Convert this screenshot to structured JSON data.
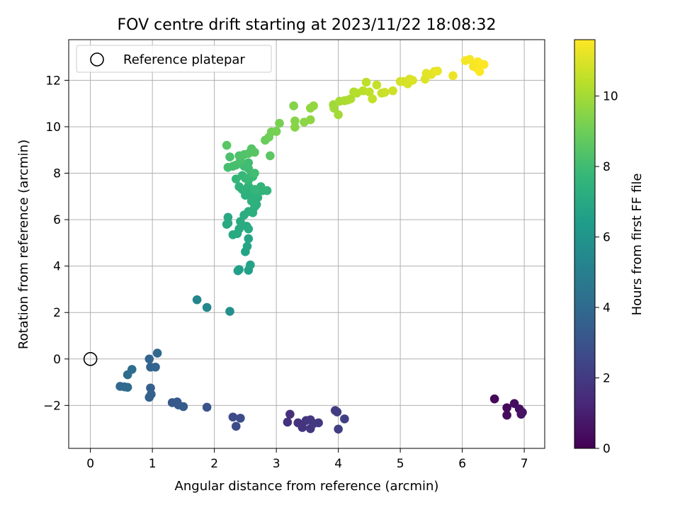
{
  "chart_data": {
    "type": "scatter",
    "title": "FOV centre drift starting at 2023/11/22 18:08:32",
    "xlabel": "Angular distance from reference (arcmin)",
    "ylabel": "Rotation from reference (arcmin)",
    "xlim": [
      -0.35,
      7.33
    ],
    "ylim": [
      -3.85,
      13.75
    ],
    "x_ticks": [
      0,
      1,
      2,
      3,
      4,
      5,
      6,
      7
    ],
    "y_ticks": [
      -2,
      0,
      2,
      4,
      6,
      8,
      10,
      12
    ],
    "grid": true,
    "legend": {
      "location": "upper left",
      "entries": [
        "Reference platepar"
      ]
    },
    "reference_point": {
      "x": 0,
      "y": 0
    },
    "colorbar": {
      "label": "Hours from first FF file",
      "range": [
        0,
        11.6
      ],
      "ticks": [
        0,
        2,
        4,
        6,
        8,
        10
      ],
      "colormap": "viridis"
    },
    "colormap_stops": [
      "#440154",
      "#482878",
      "#3e4989",
      "#31688e",
      "#26828e",
      "#1f9e89",
      "#35b779",
      "#6ece58",
      "#b5de2b",
      "#fde725"
    ],
    "points": [
      [
        6.52,
        -1.72,
        0.2
      ],
      [
        6.72,
        -2.1,
        0.3
      ],
      [
        6.84,
        -1.92,
        0.4
      ],
      [
        6.92,
        -2.15,
        0.45
      ],
      [
        6.97,
        -2.3,
        0.5
      ],
      [
        6.95,
        -2.38,
        0.55
      ],
      [
        6.72,
        -2.42,
        0.35
      ],
      [
        3.22,
        -2.38,
        1.6
      ],
      [
        3.18,
        -2.72,
        1.65
      ],
      [
        3.35,
        -2.75,
        1.7
      ],
      [
        3.42,
        -2.95,
        1.75
      ],
      [
        3.48,
        -2.65,
        1.8
      ],
      [
        3.55,
        -2.62,
        1.85
      ],
      [
        3.55,
        -3.0,
        1.9
      ],
      [
        3.6,
        -2.78,
        1.95
      ],
      [
        3.68,
        -2.75,
        2.0
      ],
      [
        3.95,
        -2.22,
        2.05
      ],
      [
        3.98,
        -2.28,
        2.1
      ],
      [
        4.0,
        -3.02,
        2.15
      ],
      [
        4.1,
        -2.58,
        2.2
      ],
      [
        2.3,
        -2.5,
        2.6
      ],
      [
        2.42,
        -2.55,
        2.65
      ],
      [
        2.35,
        -2.9,
        2.7
      ],
      [
        1.88,
        -2.08,
        3.0
      ],
      [
        1.32,
        -1.88,
        3.2
      ],
      [
        1.4,
        -1.85,
        3.25
      ],
      [
        1.42,
        -1.98,
        3.3
      ],
      [
        1.5,
        -2.05,
        3.35
      ],
      [
        0.97,
        -1.25,
        3.5
      ],
      [
        0.95,
        -1.65,
        3.55
      ],
      [
        0.98,
        -1.52,
        3.6
      ],
      [
        0.97,
        -0.35,
        3.7
      ],
      [
        0.95,
        0.0,
        3.75
      ],
      [
        1.05,
        -0.35,
        3.8
      ],
      [
        1.08,
        0.25,
        3.85
      ],
      [
        0.48,
        -1.18,
        3.9
      ],
      [
        0.55,
        -1.2,
        3.95
      ],
      [
        0.6,
        -1.22,
        4.0
      ],
      [
        0.6,
        -0.68,
        4.05
      ],
      [
        0.67,
        -0.45,
        4.1
      ],
      [
        1.72,
        2.55,
        5.3
      ],
      [
        1.88,
        2.22,
        5.4
      ],
      [
        2.25,
        2.05,
        5.8
      ],
      [
        2.4,
        3.85,
        6.5
      ],
      [
        2.38,
        3.8,
        6.55
      ],
      [
        2.55,
        3.82,
        6.6
      ],
      [
        2.58,
        4.05,
        6.65
      ],
      [
        2.5,
        4.62,
        6.7
      ],
      [
        2.53,
        4.85,
        6.75
      ],
      [
        2.55,
        5.18,
        6.8
      ],
      [
        2.2,
        5.8,
        6.9
      ],
      [
        2.22,
        6.1,
        6.95
      ],
      [
        2.22,
        5.85,
        7.0
      ],
      [
        2.3,
        5.35,
        7.0
      ],
      [
        2.4,
        5.6,
        7.05
      ],
      [
        2.37,
        5.4,
        7.05
      ],
      [
        2.52,
        5.72,
        7.1
      ],
      [
        2.55,
        5.6,
        7.1
      ],
      [
        2.42,
        5.92,
        7.15
      ],
      [
        2.48,
        6.2,
        7.2
      ],
      [
        2.55,
        6.35,
        7.2
      ],
      [
        2.62,
        6.3,
        7.25
      ],
      [
        2.65,
        6.55,
        7.25
      ],
      [
        2.68,
        6.65,
        7.3
      ],
      [
        2.7,
        6.95,
        7.3
      ],
      [
        2.63,
        6.95,
        7.35
      ],
      [
        2.58,
        7.2,
        7.35
      ],
      [
        2.6,
        6.8,
        7.4
      ],
      [
        2.5,
        7.05,
        7.4
      ],
      [
        2.55,
        7.45,
        7.45
      ],
      [
        2.45,
        7.3,
        7.5
      ],
      [
        2.4,
        7.42,
        7.5
      ],
      [
        2.7,
        7.15,
        7.55
      ],
      [
        2.78,
        7.25,
        7.55
      ],
      [
        2.85,
        7.25,
        7.6
      ],
      [
        2.75,
        7.42,
        7.6
      ],
      [
        2.65,
        7.3,
        7.65
      ],
      [
        2.35,
        7.75,
        7.7
      ],
      [
        2.45,
        7.9,
        7.75
      ],
      [
        2.5,
        7.78,
        7.8
      ],
      [
        2.55,
        7.7,
        7.8
      ],
      [
        2.62,
        7.85,
        7.85
      ],
      [
        2.6,
        8.0,
        7.9
      ],
      [
        2.55,
        8.2,
        7.95
      ],
      [
        2.48,
        8.3,
        8.0
      ],
      [
        2.55,
        8.45,
        8.0
      ],
      [
        2.65,
        8.0,
        8.05
      ],
      [
        2.22,
        8.25,
        8.1
      ],
      [
        2.3,
        8.3,
        8.1
      ],
      [
        2.35,
        8.35,
        8.15
      ],
      [
        2.42,
        8.55,
        8.2
      ],
      [
        2.25,
        8.7,
        8.25
      ],
      [
        2.4,
        8.75,
        8.3
      ],
      [
        2.48,
        8.8,
        8.35
      ],
      [
        2.55,
        8.85,
        8.4
      ],
      [
        2.6,
        9.05,
        8.45
      ],
      [
        2.65,
        8.9,
        8.5
      ],
      [
        2.2,
        9.2,
        8.55
      ],
      [
        2.9,
        8.75,
        8.6
      ],
      [
        2.82,
        9.42,
        8.9
      ],
      [
        2.88,
        9.55,
        9.0
      ],
      [
        2.92,
        9.78,
        9.1
      ],
      [
        3.0,
        9.8,
        9.15
      ],
      [
        3.05,
        10.15,
        9.2
      ],
      [
        3.28,
        10.9,
        9.4
      ],
      [
        3.3,
        10.25,
        9.45
      ],
      [
        3.3,
        9.98,
        9.5
      ],
      [
        3.45,
        10.2,
        9.55
      ],
      [
        3.55,
        10.3,
        9.6
      ],
      [
        3.55,
        10.8,
        9.65
      ],
      [
        3.6,
        10.9,
        9.7
      ],
      [
        3.92,
        10.95,
        9.9
      ],
      [
        3.93,
        10.8,
        9.95
      ],
      [
        4.0,
        10.52,
        10.0
      ],
      [
        4.02,
        11.1,
        10.05
      ],
      [
        4.1,
        11.12,
        10.1
      ],
      [
        4.15,
        11.15,
        10.15
      ],
      [
        4.2,
        11.2,
        10.2
      ],
      [
        4.25,
        11.5,
        10.25
      ],
      [
        4.3,
        11.45,
        10.3
      ],
      [
        4.4,
        11.55,
        10.4
      ],
      [
        4.45,
        11.92,
        10.45
      ],
      [
        4.5,
        11.5,
        10.5
      ],
      [
        4.55,
        11.2,
        10.55
      ],
      [
        4.62,
        11.8,
        10.6
      ],
      [
        4.7,
        11.45,
        10.65
      ],
      [
        4.75,
        11.48,
        10.7
      ],
      [
        4.88,
        11.55,
        10.75
      ],
      [
        5.0,
        11.95,
        10.8
      ],
      [
        5.05,
        11.95,
        10.85
      ],
      [
        5.12,
        11.85,
        10.9
      ],
      [
        5.15,
        12.05,
        10.95
      ],
      [
        5.2,
        12.0,
        11.0
      ],
      [
        5.4,
        12.05,
        11.05
      ],
      [
        5.42,
        12.3,
        11.1
      ],
      [
        5.5,
        12.25,
        11.15
      ],
      [
        5.55,
        12.38,
        11.2
      ],
      [
        5.6,
        12.4,
        11.25
      ],
      [
        5.85,
        12.2,
        11.3
      ],
      [
        6.05,
        12.85,
        11.4
      ],
      [
        6.12,
        12.9,
        11.45
      ],
      [
        6.18,
        12.6,
        11.5
      ],
      [
        6.22,
        12.55,
        11.5
      ],
      [
        6.25,
        12.8,
        11.55
      ],
      [
        6.3,
        12.7,
        11.55
      ],
      [
        6.35,
        12.68,
        11.6
      ],
      [
        6.28,
        12.38,
        11.6
      ]
    ]
  }
}
